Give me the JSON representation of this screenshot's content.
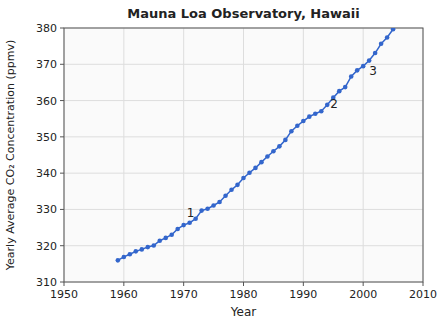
{
  "chart_data": {
    "type": "line",
    "title": "Mauna Loa Observatory, Hawaii",
    "x_label": "Year",
    "y_label": "Yearly Average CO₂ Concentration (ppmv)",
    "x": [
      1959,
      1960,
      1961,
      1962,
      1963,
      1964,
      1965,
      1966,
      1967,
      1968,
      1969,
      1970,
      1971,
      1972,
      1973,
      1974,
      1975,
      1976,
      1977,
      1978,
      1979,
      1980,
      1981,
      1982,
      1983,
      1984,
      1985,
      1986,
      1987,
      1988,
      1989,
      1990,
      1991,
      1992,
      1993,
      1994,
      1995,
      1996,
      1997,
      1998,
      1999,
      2000,
      2001,
      2002,
      2003,
      2004,
      2005
    ],
    "values": [
      315.97,
      316.91,
      317.64,
      318.45,
      318.99,
      319.62,
      320.04,
      321.38,
      322.16,
      323.04,
      324.62,
      325.68,
      326.32,
      327.45,
      329.68,
      330.18,
      331.08,
      332.05,
      333.78,
      335.41,
      336.78,
      338.68,
      340.1,
      341.44,
      343.03,
      344.58,
      346.04,
      347.39,
      349.16,
      351.56,
      353.07,
      354.35,
      355.57,
      356.38,
      357.07,
      358.82,
      360.8,
      362.59,
      363.71,
      366.65,
      368.33,
      369.48,
      371.02,
      373.1,
      375.64,
      377.38,
      379.67
    ],
    "marker": "circle",
    "xlim": [
      1950,
      2010
    ],
    "ylim": [
      310,
      380
    ],
    "xticks": [
      1950,
      1960,
      1970,
      1980,
      1990,
      2000,
      2010
    ],
    "yticks": [
      310,
      320,
      330,
      340,
      350,
      360,
      370,
      380
    ],
    "grid": true,
    "annotations": [
      {
        "text": "1",
        "x": 1970.5,
        "y": 327.5
      },
      {
        "text": "2",
        "x": 1994.5,
        "y": 357.5
      },
      {
        "text": "3",
        "x": 2001.0,
        "y": 366.5
      }
    ]
  }
}
